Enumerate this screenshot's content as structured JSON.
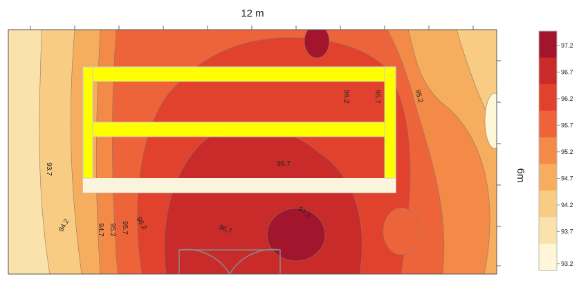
{
  "chart_data": {
    "type": "heatmap",
    "title": "",
    "top_label": "12 m",
    "right_label": "6m",
    "scale": {
      "ticks": [
        "97.2",
        "96.7",
        "96.2",
        "95.7",
        "95.2",
        "94.7",
        "94.2",
        "93.7",
        "93.2"
      ],
      "colors": [
        "#a3152c",
        "#c92b2b",
        "#e0422e",
        "#ee643a",
        "#f38a48",
        "#f7ad5e",
        "#f9cc84",
        "#fbe2ad",
        "#fef6d7"
      ]
    },
    "contour_labels": [
      "93.7",
      "94.2",
      "94.7",
      "95.2",
      "95.7",
      "96.2",
      "96.2",
      "95.7",
      "95.2",
      "96.7",
      "96.7",
      "97.2"
    ]
  }
}
